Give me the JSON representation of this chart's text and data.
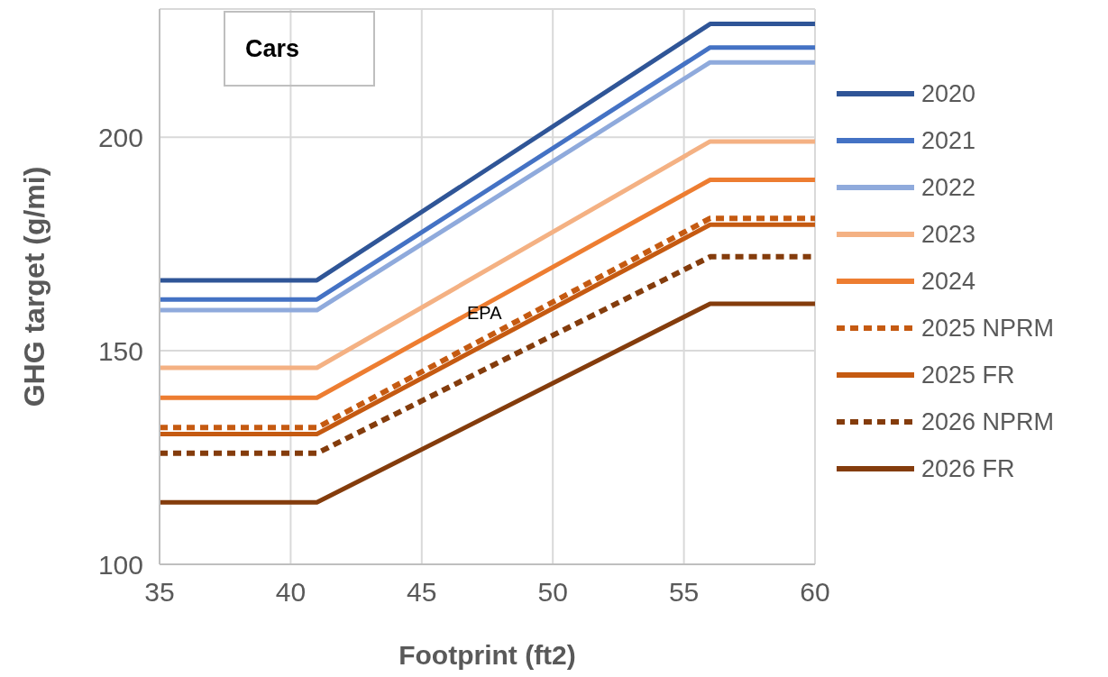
{
  "chart_data": {
    "type": "line",
    "title": "Cars",
    "xlabel": "Footprint (ft2)",
    "ylabel": "GHG target (g/mi)",
    "x": [
      35,
      41,
      56,
      60
    ],
    "series": [
      {
        "name": "2020",
        "color": "#2f5597",
        "values": [
          166.5,
          166.5,
          226.5,
          226.5
        ]
      },
      {
        "name": "2021",
        "color": "#4472c4",
        "values": [
          162,
          162,
          221,
          221
        ]
      },
      {
        "name": "2022",
        "color": "#8faadc",
        "values": [
          159.5,
          159.5,
          217.5,
          217.5
        ]
      },
      {
        "name": "2023",
        "color": "#f4b183",
        "values": [
          146,
          146,
          199,
          199
        ]
      },
      {
        "name": "2024",
        "color": "#ed7d31",
        "values": [
          139,
          139,
          190,
          190
        ]
      },
      {
        "name": "2025 NPRM",
        "color": "#c55a11",
        "line_style": "dashed",
        "values": [
          132,
          132,
          181,
          181
        ]
      },
      {
        "name": "2025 FR",
        "color": "#c55a11",
        "values": [
          130.5,
          130.5,
          179.5,
          179.5
        ]
      },
      {
        "name": "2026 NPRM",
        "color": "#843c0c",
        "line_style": "dashed",
        "values": [
          126,
          126,
          172,
          172
        ]
      },
      {
        "name": "2026 FR",
        "color": "#843c0c",
        "values": [
          114.5,
          114.5,
          161,
          161
        ]
      }
    ],
    "annotations": [
      "EPA"
    ],
    "xlim": [
      35,
      60
    ],
    "xticks": [
      35,
      40,
      45,
      50,
      55,
      60
    ],
    "ylim": [
      100,
      230
    ],
    "yticks": [
      100,
      150,
      200
    ],
    "grid": true,
    "legend": "right",
    "line_style": "solid"
  }
}
